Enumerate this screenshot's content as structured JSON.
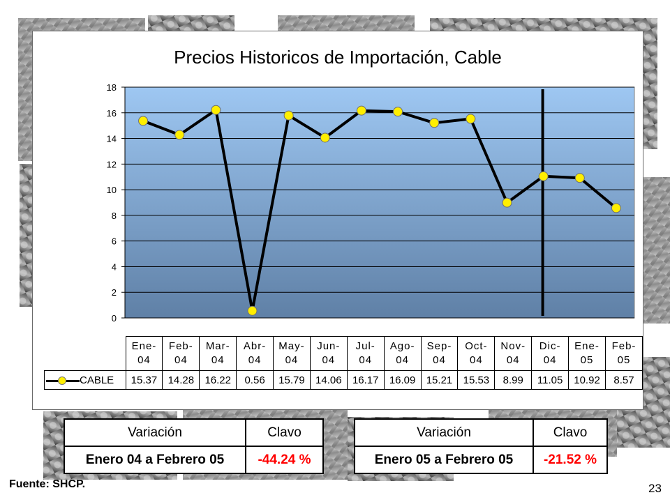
{
  "chart_data": {
    "type": "line",
    "title": "Precios Historicos de Importación, Cable",
    "categories": [
      [
        "Ene-",
        "04"
      ],
      [
        "Feb-",
        "04"
      ],
      [
        "Mar-",
        "04"
      ],
      [
        "Abr-",
        "04"
      ],
      [
        "May-",
        "04"
      ],
      [
        "Jun-",
        "04"
      ],
      [
        "Jul-",
        "04"
      ],
      [
        "Ago-",
        "04"
      ],
      [
        "Sep-",
        "04"
      ],
      [
        "Oct-",
        "04"
      ],
      [
        "Nov-",
        "04"
      ],
      [
        "Dic-",
        "04"
      ],
      [
        "Ene-",
        "05"
      ],
      [
        "Feb-",
        "05"
      ]
    ],
    "series": [
      {
        "name": "CABLE",
        "values": [
          15.37,
          14.28,
          16.22,
          0.56,
          15.79,
          14.06,
          16.17,
          16.09,
          15.21,
          15.53,
          8.99,
          11.05,
          10.92,
          8.57
        ],
        "labels": [
          "15.37",
          "14.28",
          "16.22",
          "0.56",
          "15.79",
          "14.06",
          "16.17",
          "16.09",
          "15.21",
          "15.53",
          "8.99",
          "11.05",
          "10.92",
          "8.57"
        ]
      }
    ],
    "ylim": [
      0,
      18
    ],
    "yticks": [
      0,
      2,
      4,
      6,
      8,
      10,
      12,
      14,
      16,
      18
    ],
    "grid": true,
    "marker_line_between": [
      "Nov-04",
      "Dic-04"
    ],
    "colors": {
      "plot_top": "#9ec7f2",
      "plot_bottom": "#5f80a6",
      "line": "#000000",
      "marker": "#ffef00"
    }
  },
  "variation_tables": [
    {
      "header": [
        "Variación",
        "Clavo"
      ],
      "period": "Enero 04 a Febrero 05",
      "value": "-44.24 %"
    },
    {
      "header": [
        "Variación",
        "Clavo"
      ],
      "period": "Enero 05 a Febrero 05",
      "value": "-21.52 %"
    }
  ],
  "source": "Fuente: SHCP.",
  "page_number": "23"
}
